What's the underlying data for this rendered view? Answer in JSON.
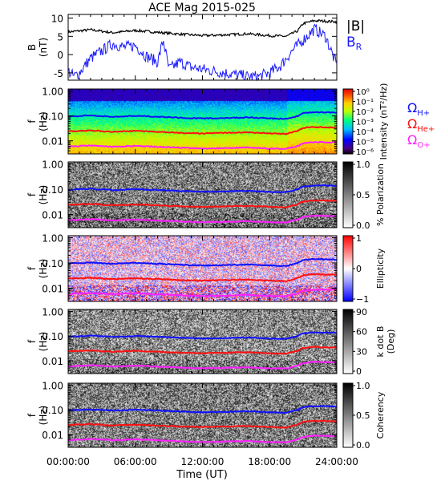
{
  "title": "ACE Mag 2015-025",
  "xaxis": {
    "label": "Time (UT)",
    "ticks": [
      "00:00:00",
      "06:00:00",
      "12:00:00",
      "18:00:00",
      "24:00:00"
    ],
    "tick_hours": [
      0,
      6,
      12,
      18,
      24
    ],
    "range_hours": [
      0,
      24
    ]
  },
  "colors": {
    "h": "#1010ff",
    "he": "#ff1010",
    "o": "#ff20ff",
    "bmag": "#000000",
    "br": "#1a1aff"
  },
  "legend": {
    "bmag": "|B|",
    "br_base": "B",
    "br_sub": "R",
    "h_base": "Ω",
    "h_sub": "H+",
    "he_base": "Ω",
    "he_sub": "He+",
    "o_base": "Ω",
    "o_sub": "O+"
  },
  "chart_data": [
    {
      "type": "line",
      "name": "B",
      "ylabel_line1": "B",
      "ylabel_line2": "(nT)",
      "ylim": [
        -7,
        11
      ],
      "yticks": [
        "10",
        "5",
        "0",
        "-5"
      ],
      "ytick_values": [
        10,
        5,
        0,
        -5
      ],
      "series": [
        {
          "name": "|B|",
          "x": [
            0,
            2,
            4,
            6,
            8,
            10,
            12,
            14,
            16,
            18,
            19.5,
            20.5,
            21,
            22,
            24
          ],
          "values": [
            6.2,
            6.8,
            6.0,
            6.6,
            6.1,
            5.6,
            5.2,
            5.4,
            5.7,
            5.2,
            5.0,
            6.5,
            8.5,
            9.3,
            9.0
          ]
        },
        {
          "name": "B_R",
          "x": [
            0,
            0.5,
            1,
            2,
            3,
            4,
            5,
            6,
            7,
            8,
            8.5,
            9,
            10,
            11,
            12,
            13,
            14,
            15,
            16,
            17,
            18,
            19,
            20,
            21,
            22,
            23,
            24
          ],
          "values": [
            -4.5,
            -6,
            -5,
            -1,
            1,
            3,
            2,
            2.5,
            -0.5,
            -2,
            4,
            -4,
            -2,
            -3.5,
            -4,
            -4.5,
            -5,
            -5.5,
            -6,
            -6,
            -5,
            -3,
            1,
            4,
            7,
            5,
            -3
          ]
        }
      ]
    },
    {
      "type": "heatmap",
      "name": "Intensity",
      "ylabel_line1": "f",
      "ylabel_line2": "(Hz)",
      "yscale": "log",
      "ylim": [
        0.003,
        1.2
      ],
      "yticks": [
        "1.00",
        "0.10",
        "0.01"
      ],
      "ytick_values": [
        1,
        0.1,
        0.01
      ],
      "colorbar": {
        "label": "Intensity (nT²/Hz)",
        "ticks": [
          "10⁰",
          "10⁻¹",
          "10⁻²",
          "10⁻³",
          "10⁻⁴",
          "10⁻⁵",
          "10⁻⁶"
        ]
      }
    },
    {
      "type": "heatmap",
      "name": "% Polarization",
      "ylabel_line1": "f",
      "ylabel_line2": "(Hz)",
      "yscale": "log",
      "ylim": [
        0.003,
        1.2
      ],
      "yticks": [
        "1.00",
        "0.10",
        "0.01"
      ],
      "ytick_values": [
        1,
        0.1,
        0.01
      ],
      "colorbar": {
        "label": "% Polarization",
        "ticks": [
          "1.0",
          "0.5",
          "0.0"
        ]
      }
    },
    {
      "type": "heatmap",
      "name": "Ellipticity",
      "ylabel_line1": "f",
      "ylabel_line2": "(Hz)",
      "yscale": "log",
      "ylim": [
        0.003,
        1.2
      ],
      "yticks": [
        "1.00",
        "0.10",
        "0.01"
      ],
      "ytick_values": [
        1,
        0.1,
        0.01
      ],
      "colorbar": {
        "label": "Ellipticity",
        "ticks": [
          "1",
          "0",
          "−1"
        ]
      }
    },
    {
      "type": "heatmap",
      "name": "k dot B",
      "ylabel_line1": "f",
      "ylabel_line2": "(Hz)",
      "yscale": "log",
      "ylim": [
        0.003,
        1.2
      ],
      "yticks": [
        "1.00",
        "0.10",
        "0.01"
      ],
      "ytick_values": [
        1,
        0.1,
        0.01
      ],
      "colorbar": {
        "label": "k dot B",
        "label2": "(Deg)",
        "ticks": [
          "90",
          "60",
          "30",
          "0"
        ]
      }
    },
    {
      "type": "heatmap",
      "name": "Coherency",
      "ylabel_line1": "f",
      "ylabel_line2": "(Hz)",
      "yscale": "log",
      "ylim": [
        0.003,
        1.2
      ],
      "yticks": [
        "1.00",
        "0.10",
        "0.01"
      ],
      "ytick_values": [
        1,
        0.1,
        0.01
      ],
      "colorbar": {
        "label": "Coherency",
        "ticks": [
          "1.0",
          "0.5",
          "0.0"
        ]
      }
    }
  ],
  "gyrofrequencies": {
    "x": [
      0,
      2,
      4,
      6,
      8,
      10,
      12,
      14,
      16,
      18,
      19.5,
      20.5,
      21,
      22,
      24
    ],
    "h_plus_hz": [
      0.095,
      0.104,
      0.092,
      0.101,
      0.093,
      0.085,
      0.079,
      0.082,
      0.087,
      0.079,
      0.076,
      0.099,
      0.13,
      0.142,
      0.137
    ],
    "he_plus_hz": [
      0.024,
      0.026,
      0.023,
      0.025,
      0.023,
      0.021,
      0.02,
      0.021,
      0.022,
      0.02,
      0.019,
      0.025,
      0.033,
      0.036,
      0.034
    ],
    "o_plus_hz": [
      0.0059,
      0.0065,
      0.0058,
      0.0063,
      0.0058,
      0.0053,
      0.0049,
      0.0051,
      0.0054,
      0.0049,
      0.0048,
      0.0062,
      0.0081,
      0.0089,
      0.0086
    ]
  }
}
